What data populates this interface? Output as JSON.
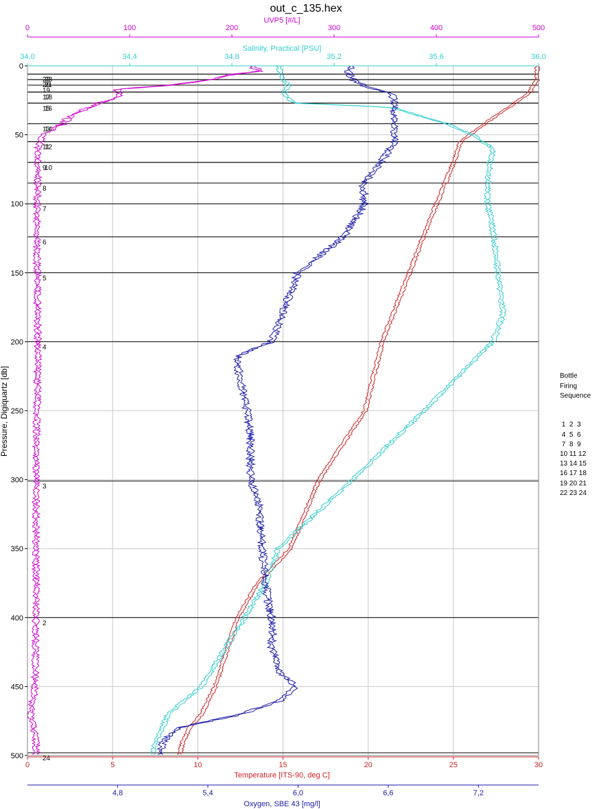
{
  "chart_data": {
    "type": "line",
    "title": "out_c_135.hex",
    "y_axis": {
      "label": "Pressure, Digiquartz [db]",
      "range": [
        0,
        500
      ],
      "ticks": [
        0,
        50,
        100,
        150,
        200,
        250,
        300,
        350,
        400,
        450,
        500
      ],
      "tick_labels": [
        "0",
        "50",
        "100",
        "150",
        "200",
        "250",
        "300",
        "350",
        "400",
        "450",
        "500"
      ],
      "inverted": true
    },
    "x_axes": {
      "uvp": {
        "label": "UVP5 [#/L]",
        "position": "top",
        "range": [
          0,
          500
        ],
        "ticks": [
          0,
          100,
          200,
          300,
          400,
          500
        ],
        "tick_labels": [
          "0",
          "100",
          "200",
          "300",
          "400",
          "500"
        ],
        "color": "#cc00cc"
      },
      "salinity": {
        "label": "Salinity, Practical [PSU]",
        "position": "top",
        "range": [
          34.0,
          36.0
        ],
        "ticks": [
          34.0,
          34.4,
          34.8,
          35.2,
          35.6,
          36.0
        ],
        "tick_labels": [
          "34,0",
          "34,4",
          "34,8",
          "35,2",
          "35,6",
          "36,0"
        ],
        "color": "#33cccc"
      },
      "temperature": {
        "label": "Temperature [ITS-90, deg C]",
        "position": "bottom",
        "range": [
          0,
          30
        ],
        "ticks": [
          0,
          5,
          10,
          15,
          20,
          25,
          30
        ],
        "tick_labels": [
          "0",
          "5",
          "10",
          "15",
          "20",
          "25",
          "30"
        ],
        "color": "#cc2222"
      },
      "oxygen": {
        "label": "Oxygen, SBE 43 [mg/l]",
        "position": "bottom",
        "range": [
          4.2,
          7.6
        ],
        "ticks": [
          4.8,
          5.4,
          6.0,
          6.6,
          7.2
        ],
        "tick_labels": [
          "4,8",
          "5,4",
          "6,0",
          "6,6",
          "7,2"
        ],
        "color": "#1a1aa6"
      }
    },
    "grid": true,
    "bottle_lines": [
      {
        "label": "2",
        "pressure": 400
      },
      {
        "label": "3",
        "pressure": 301
      },
      {
        "label": "4",
        "pressure": 200
      },
      {
        "label": "5",
        "pressure": 150
      },
      {
        "label": "6",
        "pressure": 124
      },
      {
        "label": "7",
        "pressure": 100
      },
      {
        "label": "8",
        "pressure": 85
      },
      {
        "label": "9",
        "pressure": 70
      },
      {
        "label": "10",
        "pressure": 70
      },
      {
        "label": "11",
        "pressure": 55
      },
      {
        "label": "12",
        "pressure": 55
      },
      {
        "label": "13",
        "pressure": 42
      },
      {
        "label": "14",
        "pressure": 42
      },
      {
        "label": "15",
        "pressure": 27
      },
      {
        "label": "16",
        "pressure": 27
      },
      {
        "label": "17",
        "pressure": 19
      },
      {
        "label": "18",
        "pressure": 19
      },
      {
        "label": "19",
        "pressure": 14
      },
      {
        "label": "20",
        "pressure": 10
      },
      {
        "label": "21",
        "pressure": 10
      },
      {
        "label": "22",
        "pressure": 6
      },
      {
        "label": "23",
        "pressure": 6
      },
      {
        "label": "24",
        "pressure": 498
      }
    ],
    "series": [
      {
        "axis": "temperature",
        "color": "#cc2222",
        "points": [
          [
            0,
            29.9
          ],
          [
            10,
            29.9
          ],
          [
            20,
            29.4
          ],
          [
            27,
            28.6
          ],
          [
            42,
            26.8
          ],
          [
            55,
            25.4
          ],
          [
            70,
            25.0
          ],
          [
            100,
            24.0
          ],
          [
            124,
            23.2
          ],
          [
            150,
            22.4
          ],
          [
            200,
            20.8
          ],
          [
            250,
            19.8
          ],
          [
            300,
            17.1
          ],
          [
            350,
            15.4
          ],
          [
            375,
            13.5
          ],
          [
            400,
            12.3
          ],
          [
            420,
            11.8
          ],
          [
            450,
            11.0
          ],
          [
            470,
            10.2
          ],
          [
            480,
            9.5
          ],
          [
            490,
            9.1
          ],
          [
            500,
            8.9
          ]
        ]
      },
      {
        "axis": "salinity",
        "color": "#33cccc",
        "points": [
          [
            0,
            34.98
          ],
          [
            5,
            34.99
          ],
          [
            10,
            35.0
          ],
          [
            15,
            35.02
          ],
          [
            20,
            35.0
          ],
          [
            27,
            35.04
          ],
          [
            30,
            35.42
          ],
          [
            42,
            35.64
          ],
          [
            50,
            35.74
          ],
          [
            60,
            35.82
          ],
          [
            80,
            35.8
          ],
          [
            100,
            35.8
          ],
          [
            120,
            35.82
          ],
          [
            150,
            35.84
          ],
          [
            180,
            35.86
          ],
          [
            200,
            35.82
          ],
          [
            250,
            35.55
          ],
          [
            300,
            35.27
          ],
          [
            350,
            34.98
          ],
          [
            375,
            34.93
          ],
          [
            400,
            34.85
          ],
          [
            420,
            34.78
          ],
          [
            450,
            34.68
          ],
          [
            470,
            34.55
          ],
          [
            490,
            34.5
          ],
          [
            500,
            34.49
          ]
        ]
      },
      {
        "axis": "oxygen",
        "color": "#1a1aa6",
        "points": [
          [
            0,
            6.35
          ],
          [
            5,
            6.33
          ],
          [
            10,
            6.36
          ],
          [
            15,
            6.45
          ],
          [
            20,
            6.62
          ],
          [
            27,
            6.64
          ],
          [
            30,
            6.63
          ],
          [
            42,
            6.64
          ],
          [
            50,
            6.64
          ],
          [
            55,
            6.64
          ],
          [
            70,
            6.55
          ],
          [
            85,
            6.43
          ],
          [
            100,
            6.44
          ],
          [
            124,
            6.3
          ],
          [
            150,
            6.0
          ],
          [
            200,
            5.82
          ],
          [
            210,
            5.6
          ],
          [
            220,
            5.6
          ],
          [
            250,
            5.66
          ],
          [
            270,
            5.68
          ],
          [
            300,
            5.68
          ],
          [
            320,
            5.74
          ],
          [
            350,
            5.76
          ],
          [
            375,
            5.78
          ],
          [
            400,
            5.82
          ],
          [
            410,
            5.83
          ],
          [
            420,
            5.82
          ],
          [
            440,
            5.88
          ],
          [
            450,
            5.98
          ],
          [
            460,
            5.88
          ],
          [
            470,
            5.62
          ],
          [
            480,
            5.2
          ],
          [
            490,
            5.1
          ],
          [
            500,
            5.08
          ]
        ]
      },
      {
        "axis": "uvp",
        "color": "#cc00cc",
        "points": [
          [
            0,
            218
          ],
          [
            4,
            228
          ],
          [
            6,
            200
          ],
          [
            8,
            190
          ],
          [
            10,
            180
          ],
          [
            14,
            140
          ],
          [
            17,
            88
          ],
          [
            20,
            90
          ],
          [
            24,
            84
          ],
          [
            27,
            70
          ],
          [
            30,
            62
          ],
          [
            34,
            48
          ],
          [
            38,
            40
          ],
          [
            42,
            35
          ],
          [
            46,
            25
          ],
          [
            50,
            15
          ],
          [
            60,
            10
          ],
          [
            80,
            10
          ],
          [
            100,
            9
          ],
          [
            150,
            9
          ],
          [
            200,
            10
          ],
          [
            250,
            9
          ],
          [
            300,
            8
          ],
          [
            350,
            8
          ],
          [
            400,
            8
          ],
          [
            450,
            7
          ],
          [
            470,
            3
          ],
          [
            480,
            6
          ],
          [
            490,
            8
          ],
          [
            500,
            8
          ]
        ]
      }
    ]
  },
  "legend": {
    "title": "Bottle\nFiring\nSequence",
    "rows": [
      " 1  2  3",
      " 4  5  6",
      " 7  8  9",
      "10 11 12",
      "13 14 15",
      "16 17 18",
      "19 20 21",
      "22 23 24"
    ]
  }
}
